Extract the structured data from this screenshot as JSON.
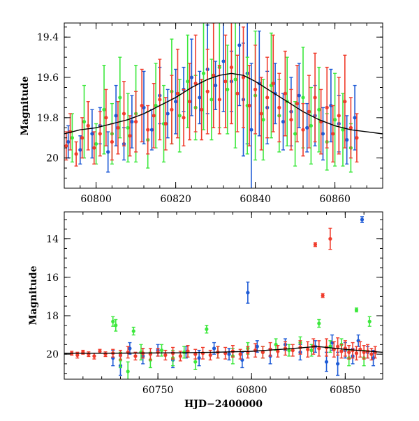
{
  "chart_data": [
    {
      "type": "scatter",
      "panel": "top",
      "ylabel": "Magnitude",
      "xlabel": "",
      "xlim": [
        60792,
        60872
      ],
      "ylim": [
        20.15,
        19.33
      ],
      "y_inverted": true,
      "x_ticks": [
        60800,
        60820,
        60840,
        60860
      ],
      "y_ticks": [
        19.4,
        19.6,
        19.8,
        20
      ],
      "x_tick_labels": [
        "60800",
        "60820",
        "60840",
        "60860"
      ],
      "y_tick_labels": [
        "19.4",
        "19.6",
        "19.8",
        "20"
      ],
      "model_curve": {
        "color": "#000000",
        "x": [
          60792,
          60796,
          60800,
          60804,
          60808,
          60812,
          60816,
          60820,
          60824,
          60828,
          60831,
          60834,
          60837,
          60840,
          60844,
          60848,
          60852,
          60856,
          60860,
          60864,
          60868,
          60872
        ],
        "y": [
          19.88,
          19.86,
          19.85,
          19.83,
          19.81,
          19.78,
          19.74,
          19.7,
          19.65,
          19.61,
          19.59,
          19.58,
          19.59,
          19.62,
          19.67,
          19.72,
          19.77,
          19.81,
          19.84,
          19.86,
          19.87,
          19.88
        ]
      },
      "series": [
        {
          "color": "#1e5bd6",
          "x": [
            60793,
            60796,
            60799,
            60801,
            60803,
            60805,
            60807,
            60809,
            60812,
            60814,
            60816,
            60818,
            60820,
            60822,
            60824,
            60826,
            60828,
            60830,
            60832,
            60834,
            60836,
            60837,
            60838,
            60839,
            60841,
            60843,
            60845,
            60847,
            60849,
            60851,
            60853,
            60855,
            60857,
            60859,
            60861,
            60863,
            60865
          ],
          "y": [
            19.92,
            19.96,
            19.88,
            19.84,
            19.97,
            19.79,
            19.93,
            19.82,
            19.75,
            19.86,
            19.69,
            19.78,
            19.72,
            19.66,
            19.6,
            19.7,
            19.56,
            19.64,
            19.52,
            19.62,
            19.44,
            19.71,
            19.58,
            19.86,
            19.63,
            19.75,
            19.68,
            19.82,
            19.77,
            19.69,
            19.85,
            19.79,
            19.88,
            19.74,
            19.83,
            19.91,
            19.8
          ],
          "err": [
            0.08,
            0.07,
            0.12,
            0.09,
            0.1,
            0.15,
            0.08,
            0.13,
            0.18,
            0.1,
            0.14,
            0.12,
            0.16,
            0.11,
            0.19,
            0.13,
            0.22,
            0.12,
            0.25,
            0.15,
            0.3,
            0.28,
            0.35,
            0.33,
            0.26,
            0.18,
            0.15,
            0.14,
            0.17,
            0.16,
            0.12,
            0.15,
            0.13,
            0.18,
            0.14,
            0.12,
            0.16
          ]
        },
        {
          "color": "#3de83d",
          "x": [
            60794,
            60797,
            60800,
            60802,
            60804,
            60806,
            60808,
            60810,
            60813,
            60815,
            60817,
            60819,
            60821,
            60823,
            60825,
            60827,
            60829,
            60831,
            60833,
            60835,
            60838,
            60840,
            60842,
            60844,
            60846,
            60848,
            60850,
            60852,
            60854,
            60856,
            60858,
            60860,
            60862,
            60864
          ],
          "y": [
            19.9,
            19.82,
            19.93,
            19.76,
            19.88,
            19.7,
            19.85,
            19.78,
            19.91,
            19.74,
            19.83,
            19.67,
            19.79,
            19.62,
            19.75,
            19.58,
            19.71,
            19.55,
            19.66,
            19.61,
            19.74,
            19.69,
            19.81,
            19.64,
            19.79,
            19.72,
            19.88,
            19.7,
            19.84,
            19.76,
            19.92,
            19.81,
            19.86,
            19.95
          ],
          "err": [
            0.12,
            0.18,
            0.1,
            0.22,
            0.15,
            0.2,
            0.17,
            0.24,
            0.14,
            0.21,
            0.19,
            0.26,
            0.18,
            0.23,
            0.16,
            0.28,
            0.2,
            0.3,
            0.22,
            0.34,
            0.24,
            0.32,
            0.2,
            0.26,
            0.18,
            0.22,
            0.16,
            0.25,
            0.19,
            0.21,
            0.14,
            0.23,
            0.18,
            0.12
          ]
        },
        {
          "color": "#f03c2c",
          "x": [
            60792.5,
            60793.5,
            60795,
            60796.5,
            60798,
            60799.5,
            60801,
            60802.5,
            60804,
            60805.5,
            60807,
            60808.5,
            60810,
            60811.5,
            60813,
            60814.5,
            60816,
            60817.5,
            60819,
            60820.5,
            60822,
            60823.5,
            60825,
            60826.5,
            60828,
            60829.5,
            60831,
            60832.5,
            60834,
            60835.5,
            60837,
            60838.5,
            60840,
            60841.5,
            60843,
            60844.5,
            60846,
            60847.5,
            60849,
            60850.5,
            60852,
            60853.5,
            60855,
            60856.5,
            60858,
            60859.5,
            60861,
            60862.5,
            60864,
            60865.5
          ],
          "y": [
            19.94,
            19.87,
            19.98,
            19.9,
            19.84,
            19.95,
            19.88,
            19.8,
            19.92,
            19.85,
            19.78,
            19.89,
            19.82,
            19.74,
            19.86,
            19.79,
            19.71,
            19.83,
            19.76,
            19.68,
            19.8,
            19.72,
            19.63,
            19.76,
            19.67,
            19.59,
            19.71,
            19.62,
            19.55,
            19.68,
            19.6,
            19.74,
            19.66,
            19.78,
            19.7,
            19.63,
            19.75,
            19.68,
            19.81,
            19.73,
            19.86,
            19.77,
            19.7,
            19.82,
            19.75,
            19.88,
            19.79,
            19.72,
            19.85,
            19.9
          ],
          "err": [
            0.07,
            0.09,
            0.06,
            0.1,
            0.12,
            0.08,
            0.11,
            0.14,
            0.09,
            0.13,
            0.16,
            0.1,
            0.15,
            0.18,
            0.12,
            0.16,
            0.2,
            0.13,
            0.17,
            0.22,
            0.14,
            0.19,
            0.24,
            0.15,
            0.21,
            0.26,
            0.17,
            0.23,
            0.28,
            0.19,
            0.25,
            0.2,
            0.22,
            0.18,
            0.2,
            0.24,
            0.17,
            0.21,
            0.15,
            0.19,
            0.13,
            0.18,
            0.22,
            0.16,
            0.2,
            0.14,
            0.19,
            0.23,
            0.15,
            0.12
          ]
        }
      ]
    },
    {
      "type": "scatter",
      "panel": "bottom",
      "ylabel": "Magnitude",
      "xlabel": "HJD−2400000",
      "xlim": [
        60700,
        60870
      ],
      "ylim": [
        21.3,
        12.6
      ],
      "y_inverted": true,
      "x_ticks": [
        60750,
        60800,
        60850
      ],
      "y_ticks": [
        14,
        16,
        18,
        20
      ],
      "x_tick_labels": [
        "60750",
        "60800",
        "60850"
      ],
      "y_tick_labels": [
        "14",
        "16",
        "18",
        "20"
      ],
      "model_curve": {
        "color": "#000000",
        "x": [
          60700,
          60720,
          60740,
          60760,
          60780,
          60800,
          60820,
          60835,
          60850,
          60870
        ],
        "y": [
          19.95,
          19.95,
          19.94,
          19.93,
          19.9,
          19.85,
          19.72,
          19.6,
          19.75,
          19.9
        ]
      },
      "series": [
        {
          "color": "#1e5bd6",
          "x": [
            60726,
            60730,
            60735,
            60742,
            60750,
            60758,
            60765,
            60772,
            60780,
            60788,
            60795,
            60798,
            60803,
            60810,
            60818,
            60826,
            60834,
            60840,
            60843,
            60846,
            60850,
            60854,
            60857,
            60859,
            60862,
            60865
          ],
          "y": [
            20.2,
            20.6,
            19.7,
            20.1,
            19.8,
            20.3,
            19.9,
            20.2,
            19.7,
            20.0,
            20.3,
            16.8,
            19.6,
            20.1,
            19.5,
            19.9,
            19.6,
            20.4,
            19.4,
            20.5,
            19.8,
            20.1,
            19.3,
            13.0,
            19.9,
            20.2
          ],
          "err": [
            0.4,
            0.5,
            0.3,
            0.4,
            0.3,
            0.4,
            0.3,
            0.4,
            0.3,
            0.3,
            0.4,
            0.55,
            0.3,
            0.4,
            0.3,
            0.4,
            0.3,
            0.5,
            0.4,
            0.6,
            0.4,
            0.4,
            0.3,
            0.15,
            0.3,
            0.4
          ]
        },
        {
          "color": "#3de83d",
          "x": [
            60726,
            60727.5,
            60730,
            60734,
            60737,
            60741,
            60746,
            60752,
            60758,
            60764,
            60770,
            60776,
            60782,
            60790,
            60798,
            60806,
            60813,
            60820,
            60826,
            60832,
            60836,
            60842,
            60848,
            60852,
            60856,
            60860,
            60863
          ],
          "y": [
            18.3,
            18.5,
            20.3,
            20.9,
            18.8,
            19.9,
            20.3,
            19.8,
            20.2,
            19.9,
            20.4,
            18.7,
            19.9,
            20.1,
            19.7,
            19.9,
            19.5,
            19.8,
            19.4,
            19.8,
            18.4,
            19.6,
            19.5,
            20.2,
            17.7,
            20.2,
            18.3
          ],
          "err": [
            0.25,
            0.3,
            0.4,
            0.5,
            0.2,
            0.4,
            0.4,
            0.3,
            0.4,
            0.3,
            0.4,
            0.2,
            0.3,
            0.4,
            0.3,
            0.3,
            0.3,
            0.3,
            0.3,
            0.3,
            0.2,
            0.3,
            0.3,
            0.4,
            0.1,
            0.4,
            0.25
          ]
        },
        {
          "color": "#f03c2c",
          "x": [
            60704,
            60707,
            60710,
            60713,
            60716,
            60719,
            60722,
            60726,
            60730,
            60734,
            60738,
            60742,
            60746,
            60750,
            60754,
            60758,
            60762,
            60766,
            60770,
            60774,
            60778,
            60782,
            60786,
            60790,
            60794,
            60798,
            60802,
            60806,
            60810,
            60814,
            60818,
            60822,
            60826,
            60830,
            60833,
            60834,
            60836,
            60838,
            60840,
            60842,
            60844,
            60846,
            60848,
            60850,
            60852,
            60854,
            60856,
            60858,
            60860,
            60862,
            60864,
            60866
          ],
          "y": [
            19.95,
            20.05,
            19.9,
            20.0,
            20.1,
            19.85,
            20.0,
            19.95,
            20.05,
            19.9,
            20.1,
            19.95,
            20.0,
            19.9,
            20.05,
            19.95,
            20.1,
            19.85,
            20.0,
            19.95,
            20.05,
            19.9,
            19.95,
            19.85,
            20.0,
            19.9,
            19.8,
            19.9,
            19.75,
            19.85,
            19.7,
            19.8,
            19.65,
            19.75,
            19.6,
            14.3,
            19.7,
            16.95,
            19.65,
            14.0,
            19.75,
            19.6,
            19.85,
            19.7,
            19.9,
            19.8,
            19.95,
            19.75,
            19.9,
            19.85,
            20.0,
            19.9
          ],
          "err": [
            0.1,
            0.15,
            0.1,
            0.12,
            0.15,
            0.1,
            0.12,
            0.2,
            0.25,
            0.3,
            0.2,
            0.25,
            0.3,
            0.2,
            0.25,
            0.3,
            0.25,
            0.3,
            0.25,
            0.3,
            0.25,
            0.3,
            0.3,
            0.3,
            0.25,
            0.3,
            0.35,
            0.3,
            0.35,
            0.3,
            0.35,
            0.3,
            0.35,
            0.4,
            0.4,
            0.1,
            0.4,
            0.1,
            0.45,
            0.55,
            0.4,
            0.45,
            0.35,
            0.4,
            0.35,
            0.4,
            0.35,
            0.4,
            0.35,
            0.35,
            0.3,
            0.3
          ]
        }
      ]
    }
  ]
}
